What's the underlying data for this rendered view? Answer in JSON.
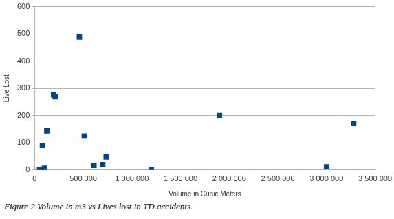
{
  "chart_data": {
    "type": "scatter",
    "caption": "Figure 2 Volume in m3 vs Lives lost in TD accidents.",
    "x_label": "Volume in Cubic Meters",
    "y_label": "Live Lost",
    "series": [
      {
        "name": "Lives lost",
        "color": "#004586",
        "marker": "square",
        "x": [
          50000,
          70000,
          100000,
          80000,
          125000,
          195000,
          210000,
          460000,
          510000,
          610000,
          700000,
          735000,
          1200000,
          1900000,
          3000000,
          3280000
        ],
        "values": [
          2,
          0,
          7,
          90,
          144,
          277,
          269,
          488,
          125,
          17,
          20,
          48,
          0,
          200,
          12,
          171
        ]
      }
    ],
    "xlim": [
      0,
      3500000
    ],
    "xticks": [
      0,
      {
        "value": 500000,
        "label": "500 000"
      },
      {
        "value": 1000000,
        "label": "1 000 000"
      },
      {
        "value": 1500000,
        "label": "1 500 000"
      },
      {
        "value": 2000000,
        "label": "2 000 000"
      },
      {
        "value": 2500000,
        "label": "2 500 000"
      },
      {
        "value": 3000000,
        "label": "3 000 000"
      },
      {
        "value": 3500000,
        "label": "3 500 000"
      }
    ],
    "ylim": [
      0,
      600
    ],
    "yticks": [
      0,
      100,
      200,
      300,
      400,
      500,
      600
    ],
    "grid": "y",
    "legend": false
  }
}
